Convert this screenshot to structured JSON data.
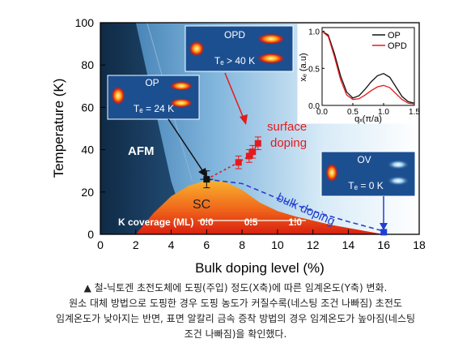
{
  "chart_data": {
    "type": "scatter",
    "xlabel": "Bulk doping level (%)",
    "ylabel": "Temperature (K)",
    "xlim": [
      0,
      18
    ],
    "ylim": [
      0,
      100
    ],
    "xticks": [
      "0",
      "2",
      "4",
      "6",
      "8",
      "10",
      "12",
      "14",
      "16",
      "18"
    ],
    "yticks": [
      "0",
      "20",
      "40",
      "60",
      "80",
      "100"
    ],
    "regions": {
      "afm": "AFM",
      "sc": "SC"
    },
    "sc_dome": {
      "x": [
        2.0,
        3.0,
        4.0,
        5.0,
        6.0,
        7.0,
        8.0,
        9.0,
        10.0,
        11.0,
        12.0,
        13.0,
        14.0,
        15.0,
        16.0
      ],
      "y": [
        0,
        10,
        18,
        23,
        25.5,
        25,
        21,
        15,
        11,
        8.5,
        6.5,
        4.5,
        3,
        1.5,
        0
      ]
    },
    "afm_boundary": {
      "x": [
        2.0,
        4.0
      ],
      "y": [
        100,
        25
      ]
    },
    "series": [
      {
        "name": "surface doping",
        "color": "#e41a1c",
        "x": [
          6.0,
          7.8,
          8.4,
          8.6,
          8.9
        ],
        "y": [
          26,
          34,
          37,
          39,
          43
        ],
        "err": [
          4,
          3,
          3,
          3,
          3
        ]
      },
      {
        "name": "bulk doping",
        "color": "#1f3fd1",
        "x": [
          16.0
        ],
        "y": [
          1
        ]
      }
    ],
    "k_coverage": {
      "label": "K coverage (ML)",
      "ticks": [
        "0.0",
        "0.5",
        "1.0"
      ],
      "tick_x": [
        6.0,
        8.5,
        11.0
      ]
    },
    "insets": {
      "opd": {
        "label": "OPD",
        "tc": "Tₑ > 40 K"
      },
      "op": {
        "label": "OP",
        "tc": "Tₑ = 24 K"
      },
      "ov": {
        "label": "OV",
        "tc": "Tₑ = 0 K"
      }
    },
    "line_inset": {
      "ylabel": "xₑ (a.u)",
      "xlabel": "qₓ(π/a)",
      "xticks": [
        "0.0",
        "0.5",
        "1.0",
        "1.5"
      ],
      "yticks": [
        "0.0",
        "0.5",
        "1.0"
      ],
      "xlim": [
        0,
        1.5
      ],
      "ylim": [
        0,
        1.05
      ],
      "series": [
        {
          "name": "OP",
          "color": "#111111",
          "x": [
            0,
            0.1,
            0.2,
            0.3,
            0.4,
            0.5,
            0.6,
            0.7,
            0.8,
            0.9,
            1.0,
            1.1,
            1.2,
            1.3,
            1.4,
            1.5
          ],
          "y": [
            1.0,
            0.95,
            0.7,
            0.4,
            0.18,
            0.1,
            0.13,
            0.22,
            0.32,
            0.4,
            0.43,
            0.38,
            0.25,
            0.12,
            0.05,
            0.03
          ]
        },
        {
          "name": "OPD",
          "color": "#e41a1c",
          "x": [
            0,
            0.1,
            0.2,
            0.3,
            0.4,
            0.5,
            0.6,
            0.7,
            0.8,
            0.9,
            1.0,
            1.1,
            1.2,
            1.3,
            1.4,
            1.5
          ],
          "y": [
            1.0,
            0.93,
            0.66,
            0.35,
            0.14,
            0.08,
            0.09,
            0.14,
            0.2,
            0.25,
            0.27,
            0.24,
            0.16,
            0.08,
            0.03,
            0.02
          ]
        }
      ]
    }
  },
  "caption": [
    "▲ 철-닉토겐 초전도체에 도핑(주입) 정도(X축)에 따른 임계온도(Y축) 변화.",
    "원소 대체 방법으로 도핑한 경우 도핑 농도가 커질수록(네스팅 조건 나빠짐) 초전도",
    "임계온도가 낮아지는 반면, 표면 알칼리 금속 증착 방법의 경우 임계온도가 높아짐(네스팅",
    "조건 나빠짐)을 확인했다."
  ],
  "colors": {
    "surface": "#e41a1c",
    "bulk": "#1f3fd1",
    "afm": "#1b3550"
  }
}
